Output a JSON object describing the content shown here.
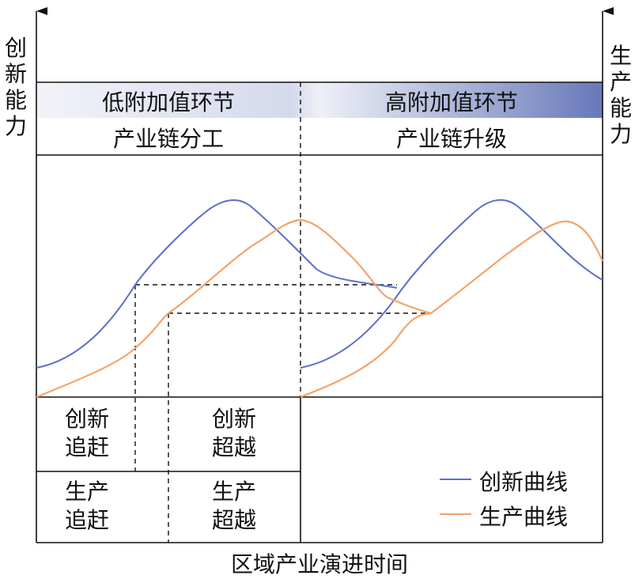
{
  "axes": {
    "y_left_label": "创新能力",
    "y_right_label": "生产能力",
    "x_label": "区域产业演进时间"
  },
  "header": {
    "left_band": "低附加值环节",
    "right_band": "高附加值环节",
    "left_stage": "产业链分工",
    "right_stage": "产业链升级"
  },
  "phases": {
    "innovation_catchup": [
      "创新",
      "追赶"
    ],
    "innovation_surpass": [
      "创新",
      "超越"
    ],
    "production_catchup": [
      "生产",
      "追赶"
    ],
    "production_surpass": [
      "生产",
      "超越"
    ]
  },
  "legend": [
    {
      "label": "创新曲线",
      "color": "#5b6fc8"
    },
    {
      "label": "生产曲线",
      "color": "#f5a36a"
    }
  ],
  "colors": {
    "innovation": "#5b6fc8",
    "production": "#f5a36a",
    "band_light": "#e6e9f4",
    "band_dark": "#6f7fbf"
  }
}
